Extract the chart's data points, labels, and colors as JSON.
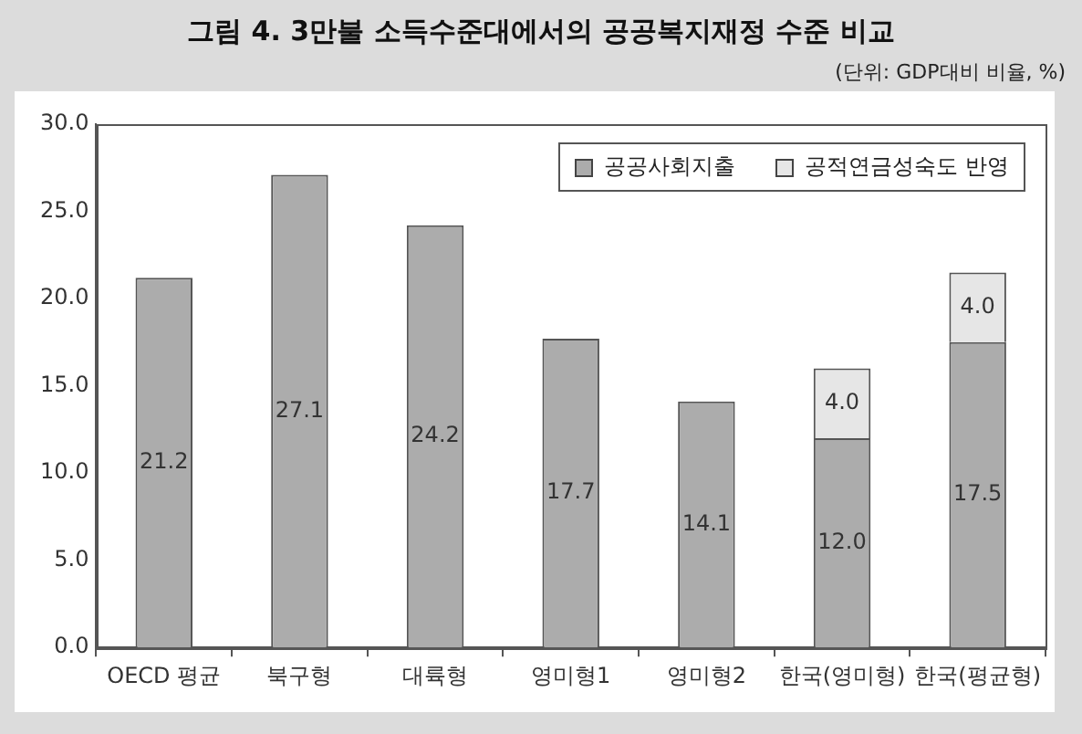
{
  "chart_data": {
    "type": "bar",
    "title": "그림 4. 3만불 소득수준대에서의 공공복지재정 수준 비교",
    "subtitle": "(단위: GDP대비 비율, %)",
    "categories": [
      "OECD 평균",
      "북구형",
      "대륙형",
      "영미형1",
      "영미형2",
      "한국(영미형)",
      "한국(평균형)"
    ],
    "series": [
      {
        "name": "공공사회지출",
        "color": "#acacac",
        "values": [
          21.2,
          27.1,
          24.2,
          17.7,
          14.1,
          12.0,
          17.5
        ],
        "value_labels": [
          "21.2",
          "27.1",
          "24.2",
          "17.7",
          "14.1",
          "12.0",
          "17.5"
        ]
      },
      {
        "name": "공적연금성숙도 반영",
        "color": "#e6e6e6",
        "values": [
          null,
          null,
          null,
          null,
          null,
          4.0,
          4.0
        ],
        "value_labels": [
          null,
          null,
          null,
          null,
          null,
          "4.0",
          "4.0"
        ]
      }
    ],
    "stacked": true,
    "ylim": [
      0,
      30
    ],
    "yticks": [
      {
        "value": 0,
        "label": "0.0"
      },
      {
        "value": 5,
        "label": "5.0"
      },
      {
        "value": 10,
        "label": "10.0"
      },
      {
        "value": 15,
        "label": "15.0"
      },
      {
        "value": 20,
        "label": "20.0"
      },
      {
        "value": 25,
        "label": "25.0"
      },
      {
        "value": 30,
        "label": "30.0"
      }
    ],
    "grid": false,
    "legend": "top right"
  }
}
